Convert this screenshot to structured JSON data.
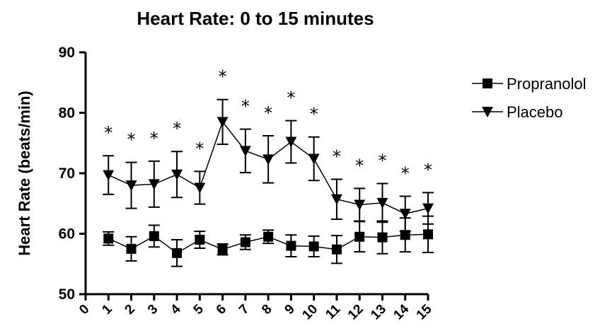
{
  "chart_data": {
    "type": "line",
    "title": "Heart Rate: 0 to 15 minutes",
    "xlabel": "",
    "ylabel": "Heart Rate (beats/min)",
    "xlim": [
      0,
      15
    ],
    "ylim": [
      50,
      90
    ],
    "x_ticks": [
      "0",
      "1",
      "2",
      "3",
      "4",
      "5",
      "6",
      "7",
      "8",
      "9",
      "10",
      "11",
      "12",
      "13",
      "14",
      "15"
    ],
    "y_ticks": [
      "50",
      "60",
      "70",
      "80",
      "90"
    ],
    "x": [
      1,
      2,
      3,
      4,
      5,
      6,
      7,
      8,
      9,
      10,
      11,
      12,
      13,
      14,
      15
    ],
    "series": [
      {
        "name": "Propranolol",
        "marker": "square",
        "values": [
          59.2,
          57.5,
          59.6,
          56.8,
          59.0,
          57.4,
          58.6,
          59.5,
          58.0,
          57.9,
          57.4,
          59.5,
          59.4,
          59.8,
          59.9
        ],
        "errors": [
          1.1,
          2.0,
          1.8,
          2.2,
          1.4,
          0.9,
          1.2,
          1.1,
          1.8,
          1.7,
          2.3,
          2.5,
          2.7,
          2.8,
          3.0
        ]
      },
      {
        "name": "Placebo",
        "marker": "triangle-down",
        "values": [
          69.7,
          68.0,
          68.2,
          69.8,
          67.6,
          78.5,
          73.7,
          72.3,
          75.2,
          72.4,
          65.7,
          64.8,
          65.1,
          63.3,
          64.2
        ],
        "errors": [
          3.2,
          3.8,
          3.8,
          3.8,
          2.7,
          3.7,
          3.6,
          3.9,
          3.5,
          3.6,
          3.3,
          2.7,
          3.2,
          2.9,
          2.6
        ]
      }
    ],
    "significance_marker": "*",
    "significance_x": [
      1,
      2,
      3,
      4,
      5,
      6,
      7,
      8,
      9,
      10,
      11,
      12,
      13,
      14,
      15
    ],
    "legend": "right",
    "grid": false
  }
}
